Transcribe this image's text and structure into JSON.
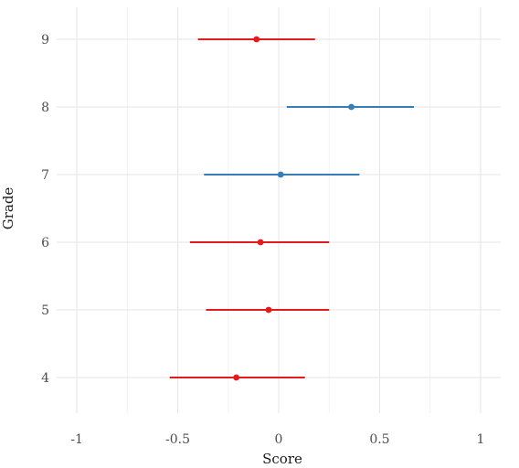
{
  "chart_data": {
    "type": "scatter",
    "subtype": "point-range",
    "title": "",
    "xlabel": "Score",
    "ylabel": "Grade",
    "xlim": [
      -1.1,
      1.1
    ],
    "xticks": [
      -1,
      -0.5,
      0,
      0.5,
      1
    ],
    "xtick_labels": [
      "-1",
      "-0.5",
      "0",
      "0.5",
      "1"
    ],
    "categories": [
      "4",
      "5",
      "6",
      "7",
      "8",
      "9"
    ],
    "grid": true,
    "legend": "none",
    "points": [
      {
        "category": "9",
        "estimate": -0.11,
        "low": -0.4,
        "high": 0.18,
        "color": "#e41a1c"
      },
      {
        "category": "8",
        "estimate": 0.36,
        "low": 0.04,
        "high": 0.67,
        "color": "#377eb8"
      },
      {
        "category": "7",
        "estimate": 0.01,
        "low": -0.37,
        "high": 0.4,
        "color": "#377eb8"
      },
      {
        "category": "6",
        "estimate": -0.09,
        "low": -0.44,
        "high": 0.25,
        "color": "#e41a1c"
      },
      {
        "category": "5",
        "estimate": -0.05,
        "low": -0.36,
        "high": 0.25,
        "color": "#e41a1c"
      },
      {
        "category": "4",
        "estimate": -0.21,
        "low": -0.54,
        "high": 0.13,
        "color": "#e41a1c"
      }
    ]
  }
}
